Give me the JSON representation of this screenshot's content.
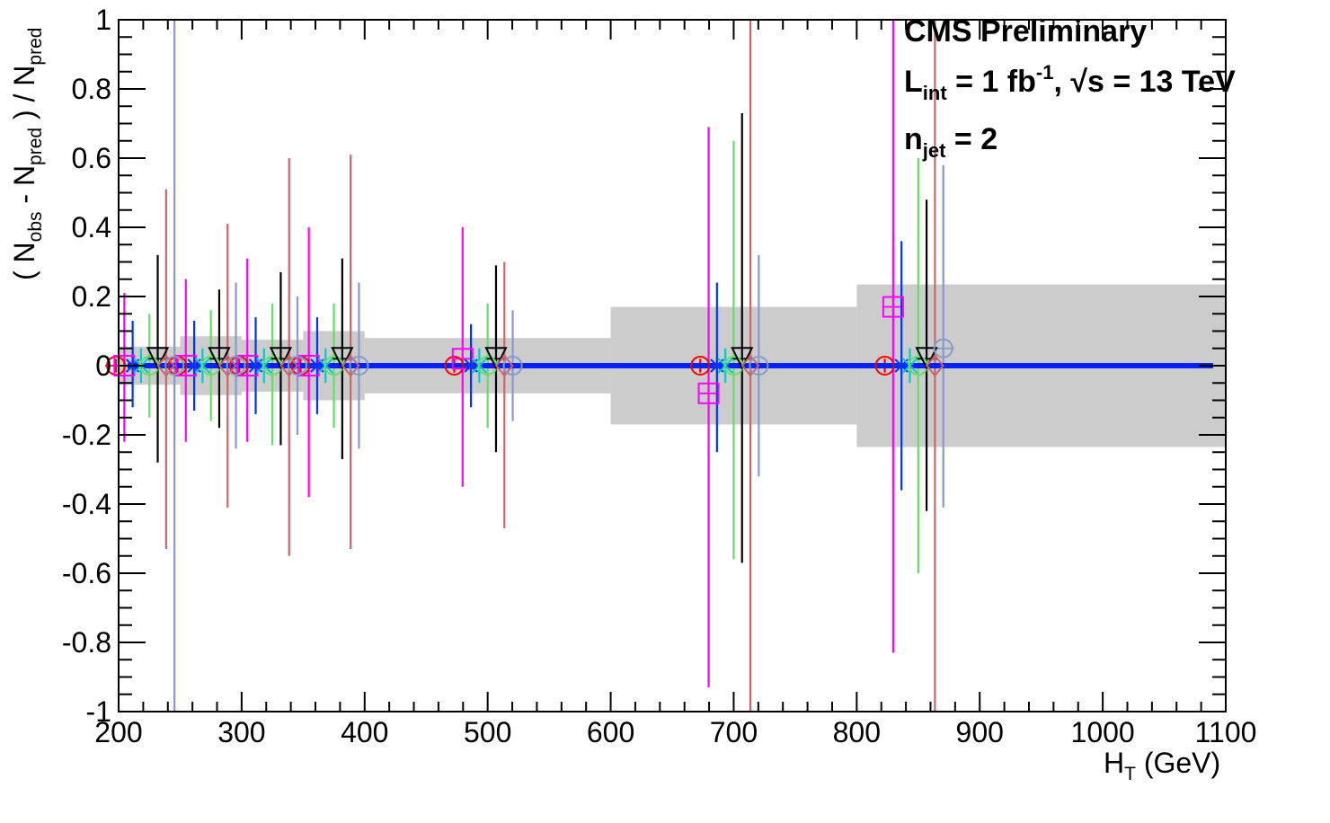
{
  "chart_data": {
    "type": "scatter",
    "xlim": [
      200,
      1100
    ],
    "ylim": [
      -1,
      1
    ],
    "x_ticks": [
      200,
      300,
      400,
      500,
      600,
      700,
      800,
      900,
      1000,
      1100
    ],
    "y_ticks": [
      -1,
      -0.8,
      -0.6,
      -0.4,
      -0.2,
      0,
      0.2,
      0.4,
      0.6,
      0.8,
      1
    ],
    "x_tick_labels": [
      "200",
      "300",
      "400",
      "500",
      "600",
      "700",
      "800",
      "900",
      "1000",
      "1100"
    ],
    "y_tick_labels": [
      "-1",
      "-0.8",
      "-0.6",
      "-0.4",
      "-0.2",
      "0",
      "0.2",
      "0.4",
      "0.6",
      "0.8",
      "1"
    ],
    "xlabel": {
      "main": "H",
      "sub": "T",
      "unit": " (GeV)"
    },
    "ylabel": {
      "p1": "( N",
      "s1": "obs",
      "p2": " - N",
      "s2": "pred",
      "p3": " ) / N",
      "s3": "pred"
    },
    "annotations": {
      "line1": "CMS Preliminary",
      "line2_L": "L",
      "line2_int": "int",
      "line2_mid": " = 1 fb",
      "line2_exp": "-1",
      "line2_rest": ",  √s = 13 TeV",
      "line3_n": "n",
      "line3_jet": "jet",
      "line3_rest": " = 2"
    },
    "grid": false,
    "legend": "none",
    "reference_line": {
      "y": 0,
      "x_range": [
        200,
        1100
      ],
      "color": "#0022ff"
    },
    "uncertainty_band": {
      "color": "#cccccc",
      "bins": [
        {
          "x0": 200,
          "x1": 250,
          "half": 0.055
        },
        {
          "x0": 250,
          "x1": 300,
          "half": 0.085
        },
        {
          "x0": 300,
          "x1": 350,
          "half": 0.075
        },
        {
          "x0": 350,
          "x1": 400,
          "half": 0.1
        },
        {
          "x0": 400,
          "x1": 600,
          "half": 0.08
        },
        {
          "x0": 600,
          "x1": 800,
          "half": 0.17
        },
        {
          "x0": 800,
          "x1": 1100,
          "half": 0.235
        }
      ]
    },
    "series": [
      {
        "marker": "circle",
        "color": "#ff0000",
        "offset": -12,
        "points": [
          {
            "x": 225,
            "y": 0.0,
            "lo": -0.02,
            "hi": 0.02
          },
          {
            "x": 275,
            "y": 0.0,
            "lo": -0.02,
            "hi": 0.02
          },
          {
            "x": 325,
            "y": 0.0,
            "lo": -0.02,
            "hi": 0.02
          },
          {
            "x": 375,
            "y": 0.0,
            "lo": -0.02,
            "hi": 0.02
          },
          {
            "x": 500,
            "y": 0.0,
            "lo": -0.02,
            "hi": 0.02
          },
          {
            "x": 700,
            "y": 0.0,
            "lo": -0.02,
            "hi": 0.02
          },
          {
            "x": 850,
            "y": 0.0,
            "lo": -0.02,
            "hi": 0.02
          }
        ]
      },
      {
        "marker": "square",
        "color": "#ff00ff",
        "offset": -9,
        "points": [
          {
            "x": 225,
            "y": 0.0,
            "lo": -0.22,
            "hi": 0.21
          },
          {
            "x": 275,
            "y": 0.0,
            "lo": -0.22,
            "hi": 0.25
          },
          {
            "x": 325,
            "y": 0.0,
            "lo": -0.22,
            "hi": 0.31
          },
          {
            "x": 375,
            "y": 0.0,
            "lo": -0.38,
            "hi": 0.4
          },
          {
            "x": 500,
            "y": 0.02,
            "lo": -0.37,
            "hi": 0.38
          },
          {
            "x": 700,
            "y": -0.08,
            "lo": -0.85,
            "hi": 0.77
          },
          {
            "x": 850,
            "y": 0.17,
            "lo": -1.0,
            "hi": 1.0
          }
        ]
      },
      {
        "marker": "star",
        "color": "#0033ff",
        "offset": -6,
        "points": [
          {
            "x": 225,
            "y": 0.0,
            "lo": -0.12,
            "hi": 0.13
          },
          {
            "x": 275,
            "y": 0.0,
            "lo": -0.13,
            "hi": 0.13
          },
          {
            "x": 325,
            "y": 0.0,
            "lo": -0.14,
            "hi": 0.14
          },
          {
            "x": 375,
            "y": 0.0,
            "lo": -0.14,
            "hi": 0.14
          },
          {
            "x": 500,
            "y": 0.0,
            "lo": -0.12,
            "hi": 0.12
          },
          {
            "x": 700,
            "y": 0.0,
            "lo": -0.25,
            "hi": 0.24
          },
          {
            "x": 850,
            "y": 0.0,
            "lo": -0.36,
            "hi": 0.36
          }
        ]
      },
      {
        "marker": "cross",
        "color": "#00cccc",
        "offset": -3,
        "points": [
          {
            "x": 225,
            "y": 0.0,
            "lo": -0.05,
            "hi": 0.05
          },
          {
            "x": 275,
            "y": 0.0,
            "lo": -0.05,
            "hi": 0.05
          },
          {
            "x": 325,
            "y": 0.0,
            "lo": -0.05,
            "hi": 0.05
          },
          {
            "x": 375,
            "y": 0.0,
            "lo": -0.05,
            "hi": 0.05
          },
          {
            "x": 500,
            "y": 0.0,
            "lo": -0.05,
            "hi": 0.05
          },
          {
            "x": 700,
            "y": 0.0,
            "lo": -0.05,
            "hi": 0.05
          },
          {
            "x": 850,
            "y": 0.0,
            "lo": -0.05,
            "hi": 0.05
          }
        ]
      },
      {
        "marker": "open-circle",
        "color": "#66dd66",
        "offset": 0,
        "points": [
          {
            "x": 225,
            "y": 0.0,
            "lo": -0.15,
            "hi": 0.15
          },
          {
            "x": 275,
            "y": 0.0,
            "lo": -0.16,
            "hi": 0.16
          },
          {
            "x": 325,
            "y": 0.0,
            "lo": -0.23,
            "hi": 0.18
          },
          {
            "x": 375,
            "y": 0.0,
            "lo": -0.18,
            "hi": 0.18
          },
          {
            "x": 500,
            "y": 0.0,
            "lo": -0.18,
            "hi": 0.18
          },
          {
            "x": 700,
            "y": 0.0,
            "lo": -0.56,
            "hi": 0.65
          },
          {
            "x": 850,
            "y": 0.0,
            "lo": -0.6,
            "hi": 0.6
          }
        ]
      },
      {
        "marker": "triangle-down",
        "color": "#000000",
        "offset": 3,
        "points": [
          {
            "x": 225,
            "y": 0.02,
            "lo": -0.3,
            "hi": 0.3
          },
          {
            "x": 275,
            "y": 0.02,
            "lo": -0.2,
            "hi": 0.2
          },
          {
            "x": 325,
            "y": 0.02,
            "lo": -0.25,
            "hi": 0.25
          },
          {
            "x": 375,
            "y": 0.02,
            "lo": -0.29,
            "hi": 0.29
          },
          {
            "x": 500,
            "y": 0.02,
            "lo": -0.27,
            "hi": 0.27
          },
          {
            "x": 700,
            "y": 0.02,
            "lo": -0.59,
            "hi": 0.71
          },
          {
            "x": 850,
            "y": 0.02,
            "lo": -0.44,
            "hi": 0.46
          }
        ]
      },
      {
        "marker": "diamond",
        "color": "#cc6666",
        "offset": 6,
        "points": [
          {
            "x": 225,
            "y": 0.0,
            "lo": -0.53,
            "hi": 0.51
          },
          {
            "x": 275,
            "y": 0.0,
            "lo": -0.41,
            "hi": 0.41
          },
          {
            "x": 325,
            "y": 0.0,
            "lo": -0.55,
            "hi": 0.6
          },
          {
            "x": 375,
            "y": 0.0,
            "lo": -0.53,
            "hi": 0.61
          },
          {
            "x": 500,
            "y": 0.0,
            "lo": -0.47,
            "hi": 0.3
          },
          {
            "x": 700,
            "y": 0.0,
            "lo": -1.0,
            "hi": 1.0
          },
          {
            "x": 850,
            "y": 0.0,
            "lo": -1.0,
            "hi": 1.0
          }
        ]
      },
      {
        "marker": "open-circle",
        "color": "#8899cc",
        "offset": 9,
        "points": [
          {
            "x": 225,
            "y": 0.0,
            "lo": -1.0,
            "hi": 1.0
          },
          {
            "x": 275,
            "y": 0.0,
            "lo": -0.24,
            "hi": 0.24
          },
          {
            "x": 325,
            "y": 0.0,
            "lo": -0.2,
            "hi": 0.2
          },
          {
            "x": 375,
            "y": 0.0,
            "lo": -0.24,
            "hi": 0.24
          },
          {
            "x": 500,
            "y": 0.0,
            "lo": -0.16,
            "hi": 0.16
          },
          {
            "x": 700,
            "y": 0.0,
            "lo": -0.32,
            "hi": 0.32
          },
          {
            "x": 850,
            "y": 0.05,
            "lo": -0.46,
            "hi": 0.53
          }
        ]
      }
    ]
  }
}
